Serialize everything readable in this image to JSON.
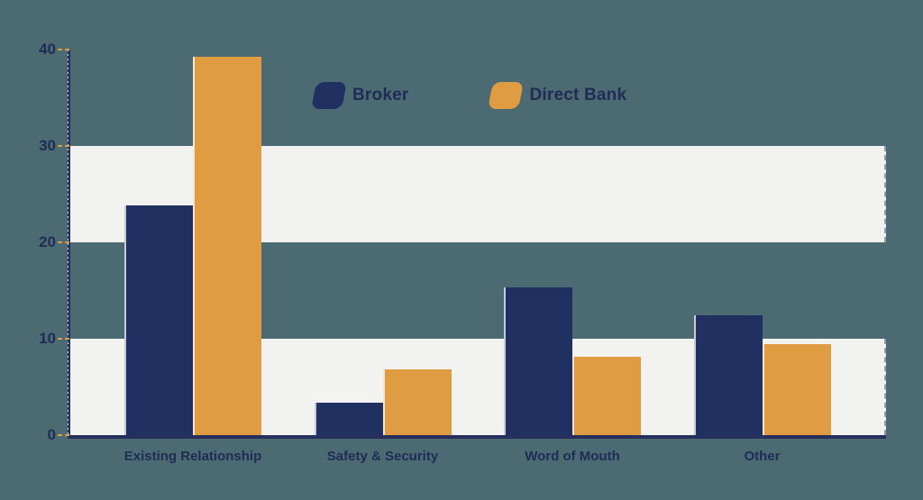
{
  "colors": {
    "background": "#4c6a72",
    "band": "#f2f2f1",
    "axis": "#27305c",
    "label_text": "#1f2c56",
    "tick_dash": "#e09c42",
    "broker": "#203161",
    "direct_bank": "#e09c42"
  },
  "legend": {
    "items": [
      "Broker",
      "Direct Bank"
    ]
  },
  "chart_data": {
    "type": "bar",
    "categories": [
      "Existing Relationship",
      "Safety & Security",
      "Word of Mouth",
      "Other"
    ],
    "series": [
      {
        "name": "Broker",
        "color": "#203161",
        "values": [
          23.8,
          3.4,
          15.3,
          12.4
        ]
      },
      {
        "name": "Direct Bank",
        "color": "#e09c42",
        "values": [
          39.3,
          6.8,
          8.1,
          9.4
        ]
      }
    ],
    "y_ticks": [
      0,
      10,
      20,
      30,
      40
    ],
    "ylim": [
      0,
      40
    ],
    "grid_bands": [
      [
        0,
        10
      ],
      [
        20,
        30
      ]
    ],
    "grid": "horizontal-bands",
    "legend_position": "top-center",
    "title": "",
    "xlabel": "",
    "ylabel": ""
  }
}
